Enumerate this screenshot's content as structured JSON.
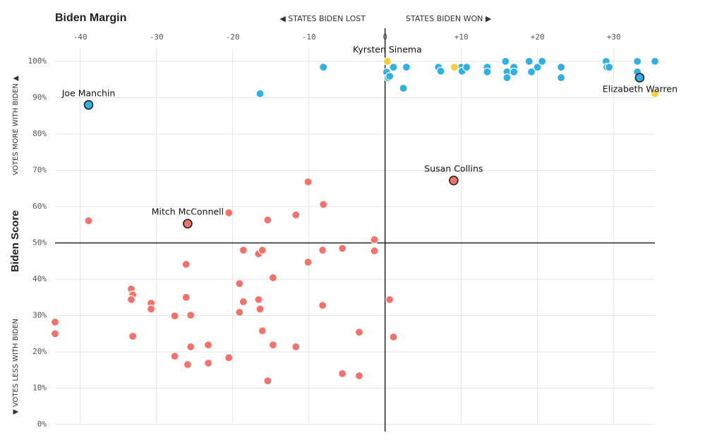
{
  "chart_data": {
    "type": "scatter",
    "title": "Biden Margin",
    "left_note": "◀ STATES BIDEN LOST",
    "right_note": "STATES BIDEN WON ▶",
    "ylabel": "Biden Score",
    "upper_note": "VOTES MORE WITH BIDEN ▲",
    "lower_note": "▼ VOTES LESS WITH BIDEN",
    "xlim": [
      -43.3,
      35.4
    ],
    "ylim": [
      0,
      100
    ],
    "xticks": [
      -40,
      -30,
      -20,
      -10,
      0,
      {
        "value": 10,
        "label": "+10"
      },
      {
        "value": 20,
        "label": "+20"
      },
      {
        "value": 30,
        "label": "+30"
      }
    ],
    "yticks": [
      {
        "value": 0,
        "label": "0%"
      },
      {
        "value": 10,
        "label": "10%"
      },
      {
        "value": 20,
        "label": "20%"
      },
      {
        "value": 30,
        "label": "30%"
      },
      {
        "value": 40,
        "label": "40%"
      },
      {
        "value": 50,
        "label": "50%"
      },
      {
        "value": 60,
        "label": "60%"
      },
      {
        "value": 70,
        "label": "70%"
      },
      {
        "value": 80,
        "label": "80%"
      },
      {
        "value": 90,
        "label": "90%"
      },
      {
        "value": 100,
        "label": "100%"
      }
    ],
    "grid": true,
    "zero_x": 0,
    "mid_y": 50,
    "series": [
      {
        "color": "#f4726a",
        "x": [
          -38.9,
          -43.3,
          -43.3,
          -33.3,
          -33.1,
          -33.3,
          -33.1,
          -30.7,
          -30.7,
          -27.6,
          -27.6,
          -26.1,
          -26.1,
          -25.9,
          -25.5,
          -25.5,
          -23.2,
          -23.2,
          -20.5,
          -20.5,
          -19.1,
          -19.1,
          -18.6,
          -18.6,
          -16.6,
          -16.6,
          -16.4,
          -16.1,
          -16.1,
          -15.4,
          -15.4,
          -14.7,
          -14.7,
          -11.7,
          -11.7,
          -10.1,
          -10.1,
          -8.1,
          -8.2,
          -8.2,
          -5.6,
          -5.6,
          -3.4,
          -3.4,
          -1.4,
          -1.4,
          0.6,
          1.1
        ],
        "y": [
          56.1,
          28.2,
          25.0,
          37.3,
          35.7,
          34.4,
          24.3,
          33.4,
          31.8,
          29.9,
          18.8,
          44.1,
          35.0,
          16.5,
          30.1,
          21.4,
          21.9,
          16.9,
          18.4,
          58.3,
          38.8,
          30.9,
          48.0,
          33.8,
          34.4,
          47.0,
          31.8,
          48.0,
          25.8,
          56.3,
          12.0,
          40.4,
          21.9,
          57.7,
          21.4,
          66.8,
          44.7,
          60.6,
          48.0,
          32.8,
          48.5,
          14.0,
          25.4,
          13.4,
          50.9,
          47.8,
          34.4,
          24.1
        ]
      },
      {
        "color": "#2fb0e6",
        "x": [
          -8.1,
          -16.4,
          0.2,
          0.4,
          0.6,
          1.1,
          2.4,
          2.8,
          7.0,
          7.3,
          10.0,
          10.1,
          10.7,
          13.4,
          13.4,
          15.8,
          16.0,
          16.0,
          16.9,
          16.9,
          18.9,
          19.2,
          20.0,
          20.6,
          23.1,
          23.1,
          29.0,
          29.1,
          29.4,
          33.1,
          33.1,
          35.4
        ],
        "y": [
          98.4,
          91.1,
          97.0,
          95.5,
          95.9,
          98.4,
          92.6,
          98.4,
          98.4,
          97.3,
          98.4,
          97.3,
          98.4,
          98.4,
          97.1,
          100,
          97.1,
          95.5,
          98.4,
          97.1,
          100,
          97.1,
          98.4,
          100,
          98.4,
          95.5,
          100,
          98.4,
          98.4,
          100,
          97.1,
          100
        ]
      },
      {
        "color": "#f5d03a",
        "x": [
          9.1,
          35.4
        ],
        "y": [
          98.4,
          91.1
        ]
      }
    ],
    "annotations": [
      {
        "text": "Joe Manchin",
        "x": -38.9,
        "y": 88.0,
        "color": "#2fb0e6",
        "outlined": true,
        "label_side": "above"
      },
      {
        "text": "Mitch McConnell",
        "x": -25.9,
        "y": 55.3,
        "color": "#f4726a",
        "outlined": true,
        "label_side": "above"
      },
      {
        "text": "Susan Collins",
        "x": 9.0,
        "y": 67.2,
        "color": "#f4726a",
        "outlined": true,
        "label_side": "above"
      },
      {
        "text": "Kyrsten Sinema",
        "x": 0.3,
        "y": 100,
        "color": "#f5d03a",
        "outlined": false,
        "label_side": "above"
      },
      {
        "text": "Elizabeth Warren",
        "x": 33.4,
        "y": 95.5,
        "color": "#2fb0e6",
        "outlined": true,
        "label_side": "below"
      }
    ]
  }
}
